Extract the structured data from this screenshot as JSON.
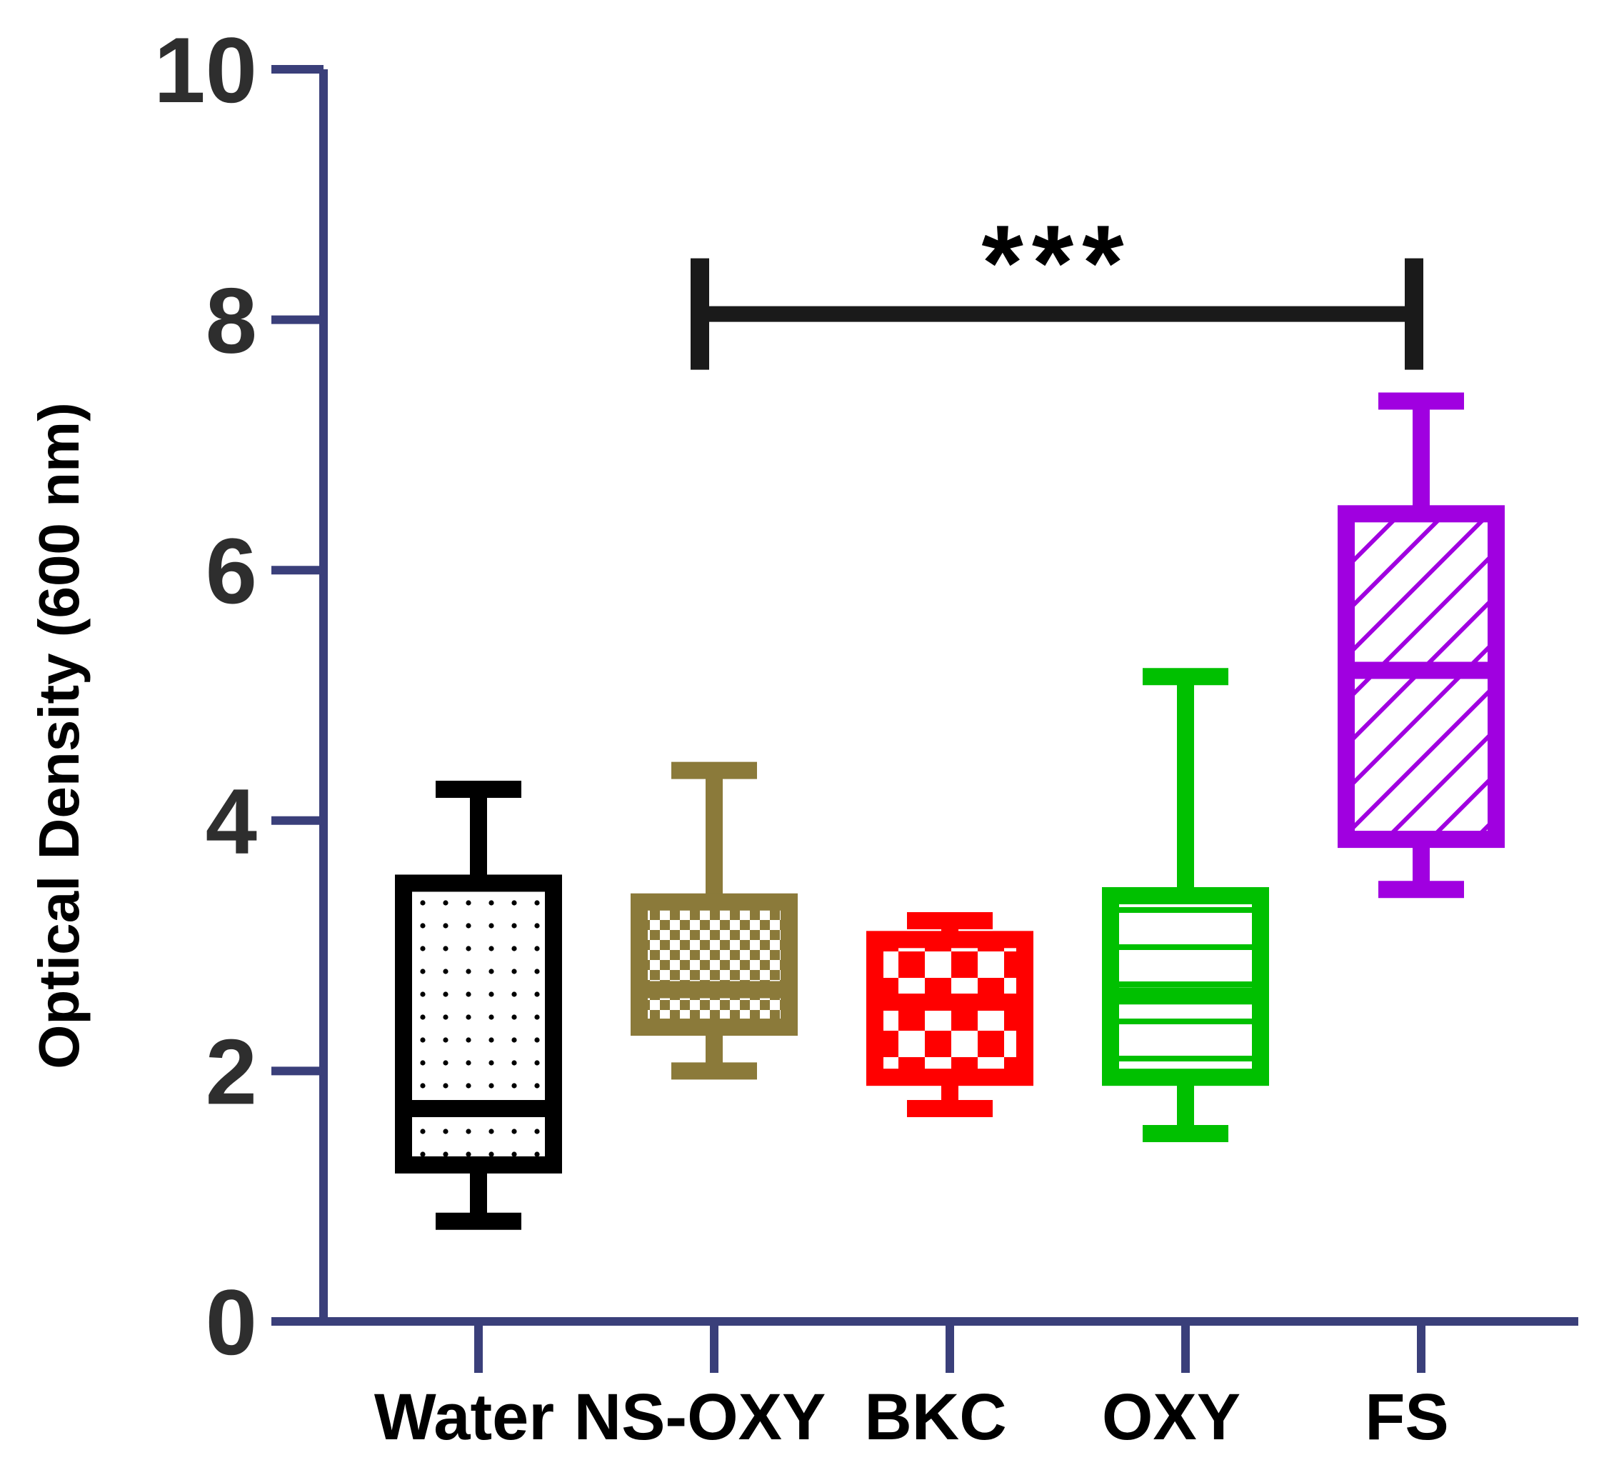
{
  "chart_data": {
    "type": "box",
    "title": "",
    "xlabel": "",
    "ylabel": "Optical Density (600 nm)",
    "ylim": [
      0,
      10
    ],
    "yticks": [
      0,
      2,
      4,
      6,
      8,
      10
    ],
    "y_tick_labels": [
      "0",
      "2",
      "4",
      "6",
      "8",
      "10"
    ],
    "categories": [
      "Water",
      "NS-OXY",
      "BKC",
      "OXY",
      "FS"
    ],
    "series": [
      {
        "name": "Water",
        "min": 0.8,
        "q1": 1.25,
        "median": 1.7,
        "q3": 3.5,
        "max": 4.25,
        "color": "#000000",
        "pattern": "dots"
      },
      {
        "name": "NS-OXY",
        "min": 2.0,
        "q1": 2.35,
        "median": 2.65,
        "q3": 3.35,
        "max": 4.4,
        "color": "#8b7a3a",
        "pattern": "checker"
      },
      {
        "name": "BKC",
        "min": 1.7,
        "q1": 1.95,
        "median": 2.55,
        "q3": 3.05,
        "max": 3.2,
        "color": "#ff0000",
        "pattern": "checker-large"
      },
      {
        "name": "OXY",
        "min": 1.5,
        "q1": 1.95,
        "median": 2.6,
        "q3": 3.4,
        "max": 5.15,
        "color": "#00c000",
        "pattern": "hlines"
      },
      {
        "name": "FS",
        "min": 3.45,
        "q1": 3.85,
        "median": 5.2,
        "q3": 6.45,
        "max": 7.35,
        "color": "#a000e0",
        "pattern": "diagonal"
      }
    ],
    "annotations": [
      {
        "type": "significance-bracket",
        "from": "NS-OXY",
        "to": "FS",
        "y": 8.0,
        "label": "***"
      }
    ],
    "axis_color": "#3a3f7a",
    "text_color": "#2e2e2e"
  }
}
